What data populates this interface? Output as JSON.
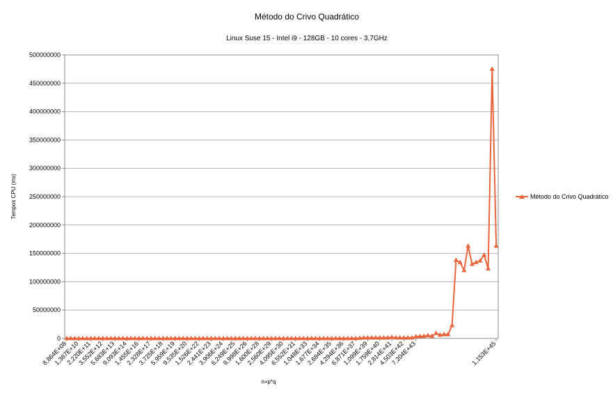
{
  "chart_data": {
    "type": "line",
    "title": "Método do Crivo Quadrático",
    "subtitle": "Linux Suse 15 -  Intel i9 -  128GB - 10 cores - 3,7GHz",
    "xlabel": "n=p*q",
    "ylabel": "Tempos CPU (ms)",
    "ylim": [
      0,
      500000000
    ],
    "yticks": [
      "0",
      "50000000",
      "100000000",
      "150000000",
      "200000000",
      "250000000",
      "300000000",
      "350000000",
      "400000000",
      "450000000",
      "500000000"
    ],
    "xtick_labels": [
      "8,864E+08",
      "1,387E+10",
      "2,220E+11",
      "3,552E+12",
      "5,683E+13",
      "9,093E+14",
      "1,455E+16",
      "2,328E+17",
      "3,725E+18",
      "5,959E+19",
      "9,535E+20",
      "1,526E+22",
      "2,441E+23",
      "3,906E+24",
      "6,249E+25",
      "9,998E+26",
      "1,600E+28",
      "2,560E+29",
      "4,095E+30",
      "6,552E+31",
      "1,048E+33",
      "1,677E+34",
      "2,684E+35",
      "4,294E+36",
      "6,871E+37",
      "1,099E+39",
      "1,759E+40",
      "2,814E+41",
      "4,503E+42",
      "7,204E+43",
      "1,153E+45"
    ],
    "grid": true,
    "legend_position": "right",
    "series": [
      {
        "name": "Método do Crivo Quadrático",
        "color": "#e8643c",
        "marker": "triangle",
        "values": [
          1000,
          1000,
          1000,
          1000,
          1000,
          1000,
          1000,
          1000,
          1000,
          1000,
          1000,
          1000,
          1000,
          1000,
          1000,
          1000,
          1000,
          1000,
          1000,
          1000,
          1000,
          1000,
          1000,
          1000,
          1000,
          1000,
          1000,
          1000,
          1000,
          1000,
          1000,
          1000,
          1000,
          1000,
          1000,
          1000,
          1000,
          1000,
          1000,
          1000,
          1000,
          1000,
          1000,
          1000,
          1000,
          1000,
          1000,
          1000,
          1000,
          1000,
          1000,
          1000,
          1000,
          1000,
          1000,
          1000,
          1000,
          1000,
          1000,
          1000,
          1000,
          1000,
          1000,
          1000,
          1000,
          1000,
          1000,
          1000,
          1000,
          1000,
          1000,
          1000,
          1000,
          500000,
          1000000,
          1000000,
          1000000,
          1000000,
          1000000,
          1000000,
          1000000,
          2000000,
          1000000,
          1000000,
          1000000,
          1000000,
          1000000,
          3000000,
          3500000,
          4000000,
          5000000,
          4000000,
          9000000,
          6000000,
          7000000,
          7000000,
          23000000,
          138000000,
          134000000,
          120000000,
          163000000,
          131000000,
          134000000,
          137000000,
          147000000,
          123000000,
          475000000,
          163000000
        ]
      }
    ]
  }
}
